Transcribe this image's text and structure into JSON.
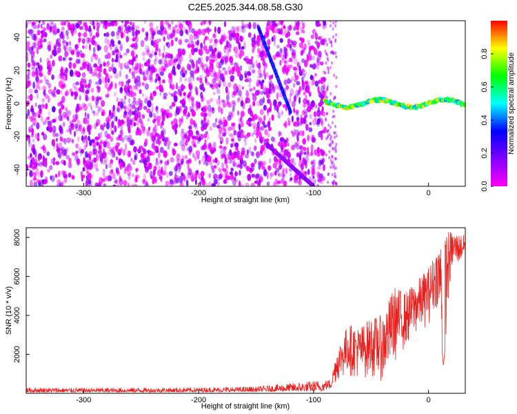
{
  "title": "C2E5.2025.344.08.58.G30",
  "chart_data": [
    {
      "type": "heatmap",
      "xlabel": "Height of straight line (km)",
      "ylabel": "Frequency (Hz)",
      "xlim": [
        -350,
        32
      ],
      "ylim": [
        -50,
        50
      ],
      "xticks": [
        -300,
        -200,
        -100,
        0
      ],
      "yticks": [
        -40,
        -20,
        0,
        20,
        40
      ],
      "colorbar": {
        "label": "Normalized spectral amplitude",
        "range": [
          0,
          1
        ],
        "ticks": [
          0.0,
          0.2,
          0.4,
          0.6,
          0.8
        ],
        "colormap": "rainbow (magenta-blue-cyan-green-yellow-red)"
      },
      "colorbar_colors": [
        "#ff00ff",
        "#8000ff",
        "#0000ff",
        "#00ffff",
        "#00ff00",
        "#ffff00",
        "#ff0000"
      ],
      "noise_region_x": [
        -350,
        -90
      ],
      "noise_amplitude_range": [
        0.0,
        0.2
      ],
      "trace_segments": [
        {
          "x": [
            -148,
            -120
          ],
          "y": [
            46,
            -5
          ],
          "amplitude": 0.35
        },
        {
          "x": [
            -140,
            -100
          ],
          "y": [
            -25,
            -50
          ],
          "amplitude": 0.15
        },
        {
          "x": [
            -90,
            32
          ],
          "y": [
            0,
            0
          ],
          "amplitude": 0.9
        }
      ]
    },
    {
      "type": "line",
      "xlabel": "Height of straight line (km)",
      "ylabel": "SNR (10 * v/v)",
      "xlim": [
        -350,
        32
      ],
      "ylim": [
        0,
        8500
      ],
      "xticks": [
        -300,
        -200,
        -100,
        0
      ],
      "yticks": [
        2000,
        4000,
        6000,
        8000
      ],
      "series": [
        {
          "color": "#e8201e",
          "envelope": [
            {
              "x": -350,
              "low": 50,
              "high": 300
            },
            {
              "x": -300,
              "low": 50,
              "high": 280
            },
            {
              "x": -200,
              "low": 60,
              "high": 300
            },
            {
              "x": -150,
              "low": 80,
              "high": 350
            },
            {
              "x": -100,
              "low": 100,
              "high": 650
            },
            {
              "x": -85,
              "low": 150,
              "high": 700
            },
            {
              "x": -80,
              "low": 600,
              "high": 2200
            },
            {
              "x": -70,
              "low": 900,
              "high": 3600
            },
            {
              "x": -60,
              "low": 700,
              "high": 3400
            },
            {
              "x": -50,
              "low": 800,
              "high": 3900
            },
            {
              "x": -40,
              "low": 600,
              "high": 4000
            },
            {
              "x": -30,
              "low": 1500,
              "high": 5500
            },
            {
              "x": -20,
              "low": 2300,
              "high": 5200
            },
            {
              "x": -10,
              "low": 3000,
              "high": 5800
            },
            {
              "x": 0,
              "low": 3500,
              "high": 6500
            },
            {
              "x": 8,
              "low": 4500,
              "high": 7500
            },
            {
              "x": 13,
              "low": 1400,
              "high": 8500
            },
            {
              "x": 20,
              "low": 6300,
              "high": 8300
            },
            {
              "x": 32,
              "low": 6900,
              "high": 8100
            }
          ]
        }
      ]
    }
  ]
}
